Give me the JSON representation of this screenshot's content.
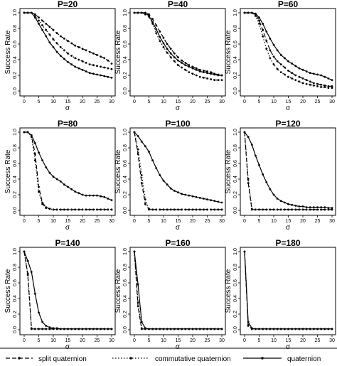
{
  "chart_data": {
    "type": "line",
    "panel_order": [
      "P=20",
      "P=40",
      "P=60",
      "P=80",
      "P=100",
      "P=120",
      "P=140",
      "P=160",
      "P=180"
    ],
    "xlabel": "σ",
    "ylabel": "Success Rate",
    "xlim": [
      0,
      30
    ],
    "ylim": [
      0,
      1
    ],
    "xticks": [
      "0",
      "5",
      "10",
      "15",
      "20",
      "25",
      "30"
    ],
    "yticks": [
      "0.0",
      "0.2",
      "0.4",
      "0.6",
      "0.8",
      "1.0"
    ],
    "grid": false,
    "legend_placement": "bottom",
    "x": [
      0,
      1.25,
      2.5,
      3.75,
      5,
      6.25,
      7.5,
      8.75,
      10,
      11.25,
      12.5,
      13.75,
      15,
      16.25,
      17.5,
      18.75,
      20,
      21.25,
      22.5,
      23.75,
      25,
      26.25,
      27.5,
      28.75,
      30
    ],
    "legend": [
      {
        "name": "split quaternion",
        "style": "dashed"
      },
      {
        "name": "commutative quaternion",
        "style": "dotted"
      },
      {
        "name": "quaternion",
        "style": "solid"
      }
    ],
    "panels": [
      {
        "title": "P=20",
        "series": [
          {
            "name": "split quaternion",
            "values": [
              1.0,
              1.0,
              1.0,
              0.98,
              0.94,
              0.9,
              0.86,
              0.82,
              0.78,
              0.74,
              0.7,
              0.67,
              0.64,
              0.61,
              0.58,
              0.56,
              0.54,
              0.52,
              0.5,
              0.48,
              0.46,
              0.44,
              0.42,
              0.39,
              0.35
            ]
          },
          {
            "name": "commutative quaternion",
            "values": [
              1.0,
              1.0,
              1.0,
              0.96,
              0.9,
              0.84,
              0.78,
              0.72,
              0.66,
              0.61,
              0.56,
              0.52,
              0.48,
              0.45,
              0.42,
              0.4,
              0.38,
              0.36,
              0.34,
              0.33,
              0.32,
              0.31,
              0.3,
              0.29,
              0.28
            ]
          },
          {
            "name": "quaternion",
            "values": [
              1.0,
              1.0,
              1.0,
              0.94,
              0.86,
              0.78,
              0.7,
              0.62,
              0.56,
              0.5,
              0.45,
              0.41,
              0.37,
              0.34,
              0.31,
              0.29,
              0.27,
              0.25,
              0.23,
              0.22,
              0.21,
              0.2,
              0.19,
              0.18,
              0.17
            ]
          }
        ]
      },
      {
        "title": "P=40",
        "series": [
          {
            "name": "split quaternion",
            "values": [
              1.0,
              1.0,
              1.0,
              1.0,
              0.98,
              0.92,
              0.84,
              0.76,
              0.68,
              0.6,
              0.54,
              0.48,
              0.43,
              0.39,
              0.36,
              0.33,
              0.31,
              0.29,
              0.27,
              0.26,
              0.25,
              0.24,
              0.22,
              0.21,
              0.2
            ]
          },
          {
            "name": "commutative quaternion",
            "values": [
              1.0,
              1.0,
              1.0,
              0.98,
              0.95,
              0.86,
              0.74,
              0.64,
              0.56,
              0.49,
              0.43,
              0.38,
              0.33,
              0.3,
              0.27,
              0.24,
              0.22,
              0.2,
              0.18,
              0.17,
              0.16,
              0.15,
              0.14,
              0.14,
              0.14
            ]
          },
          {
            "name": "quaternion",
            "values": [
              1.0,
              1.0,
              1.0,
              1.0,
              0.96,
              0.88,
              0.79,
              0.69,
              0.61,
              0.54,
              0.48,
              0.43,
              0.39,
              0.36,
              0.33,
              0.31,
              0.29,
              0.27,
              0.25,
              0.24,
              0.23,
              0.22,
              0.21,
              0.2,
              0.2
            ]
          }
        ]
      },
      {
        "title": "P=60",
        "series": [
          {
            "name": "split quaternion",
            "values": [
              1.0,
              1.0,
              1.0,
              0.98,
              0.9,
              0.78,
              0.64,
              0.52,
              0.44,
              0.38,
              0.34,
              0.3,
              0.26,
              0.23,
              0.2,
              0.18,
              0.16,
              0.14,
              0.12,
              0.1,
              0.09,
              0.08,
              0.07,
              0.06,
              0.06
            ]
          },
          {
            "name": "commutative quaternion",
            "values": [
              1.0,
              1.0,
              1.0,
              0.96,
              0.86,
              0.7,
              0.54,
              0.42,
              0.34,
              0.28,
              0.24,
              0.21,
              0.18,
              0.16,
              0.14,
              0.12,
              0.1,
              0.09,
              0.08,
              0.07,
              0.06,
              0.05,
              0.05,
              0.04,
              0.04
            ]
          },
          {
            "name": "quaternion",
            "values": [
              1.0,
              1.0,
              1.0,
              0.99,
              0.94,
              0.86,
              0.76,
              0.67,
              0.59,
              0.52,
              0.46,
              0.42,
              0.38,
              0.35,
              0.32,
              0.29,
              0.27,
              0.25,
              0.23,
              0.22,
              0.21,
              0.2,
              0.18,
              0.16,
              0.14
            ]
          }
        ]
      },
      {
        "title": "P=80",
        "series": [
          {
            "name": "split quaternion",
            "values": [
              1.0,
              1.0,
              0.96,
              0.72,
              0.3,
              0.1,
              0.04,
              0.02,
              0.01,
              0.01,
              0.01,
              0.01,
              0.01,
              0.01,
              0.01,
              0.01,
              0.01,
              0.01,
              0.01,
              0.01,
              0.01,
              0.01,
              0.01,
              0.01,
              0.01
            ]
          },
          {
            "name": "commutative quaternion",
            "values": [
              1.0,
              1.0,
              0.94,
              0.64,
              0.24,
              0.08,
              0.03,
              0.02,
              0.01,
              0.01,
              0.01,
              0.01,
              0.01,
              0.01,
              0.01,
              0.01,
              0.01,
              0.01,
              0.01,
              0.01,
              0.01,
              0.01,
              0.01,
              0.01,
              0.01
            ]
          },
          {
            "name": "quaternion",
            "values": [
              1.0,
              1.0,
              0.96,
              0.86,
              0.74,
              0.64,
              0.55,
              0.48,
              0.43,
              0.4,
              0.37,
              0.33,
              0.3,
              0.27,
              0.24,
              0.22,
              0.2,
              0.19,
              0.19,
              0.19,
              0.19,
              0.18,
              0.17,
              0.15,
              0.13
            ]
          }
        ]
      },
      {
        "title": "P=100",
        "series": [
          {
            "name": "split quaternion",
            "values": [
              1.0,
              0.72,
              0.35,
              0.08,
              0.01,
              0.01,
              0.01,
              0.01,
              0.01,
              0.01,
              0.01,
              0.01,
              0.01,
              0.01,
              0.01,
              0.01,
              0.01,
              0.01,
              0.01,
              0.01,
              0.01,
              0.01,
              0.01,
              0.01,
              0.01
            ]
          },
          {
            "name": "commutative quaternion",
            "values": [
              1.0,
              0.78,
              0.45,
              0.14,
              0.02,
              0.01,
              0.01,
              0.01,
              0.01,
              0.01,
              0.01,
              0.01,
              0.01,
              0.01,
              0.01,
              0.01,
              0.01,
              0.01,
              0.01,
              0.01,
              0.01,
              0.01,
              0.01,
              0.01,
              0.01
            ]
          },
          {
            "name": "quaternion",
            "values": [
              1.0,
              0.95,
              0.88,
              0.82,
              0.75,
              0.64,
              0.54,
              0.45,
              0.38,
              0.33,
              0.28,
              0.25,
              0.23,
              0.21,
              0.2,
              0.19,
              0.18,
              0.17,
              0.16,
              0.15,
              0.14,
              0.13,
              0.12,
              0.11,
              0.1
            ]
          }
        ]
      },
      {
        "title": "P=120",
        "series": [
          {
            "name": "split quaternion",
            "values": [
              1.0,
              0.35,
              0.01,
              0.01,
              0.01,
              0.01,
              0.01,
              0.01,
              0.01,
              0.01,
              0.01,
              0.01,
              0.01,
              0.01,
              0.01,
              0.01,
              0.01,
              0.01,
              0.01,
              0.01,
              0.01,
              0.01,
              0.01,
              0.01,
              0.01
            ]
          },
          {
            "name": "commutative quaternion",
            "values": [
              1.0,
              0.4,
              0.02,
              0.01,
              0.01,
              0.01,
              0.01,
              0.01,
              0.01,
              0.01,
              0.01,
              0.01,
              0.01,
              0.01,
              0.01,
              0.01,
              0.01,
              0.01,
              0.01,
              0.01,
              0.01,
              0.01,
              0.01,
              0.01,
              0.01
            ]
          },
          {
            "name": "quaternion",
            "values": [
              1.0,
              0.94,
              0.84,
              0.7,
              0.58,
              0.46,
              0.36,
              0.27,
              0.2,
              0.15,
              0.12,
              0.1,
              0.08,
              0.07,
              0.06,
              0.05,
              0.05,
              0.04,
              0.04,
              0.04,
              0.04,
              0.04,
              0.04,
              0.03,
              0.03
            ]
          }
        ]
      },
      {
        "title": "P=140",
        "series": [
          {
            "name": "split quaternion",
            "values": [
              1.0,
              0.7,
              0.01,
              0.01,
              0.01,
              0.01,
              0.01,
              0.01,
              0.01,
              0.01,
              0.01,
              0.01,
              0.01,
              0.01,
              0.01,
              0.01,
              0.01,
              0.01,
              0.01,
              0.01,
              0.01,
              0.01,
              0.01,
              0.01,
              0.01
            ]
          },
          {
            "name": "commutative quaternion",
            "values": [
              1.0,
              0.72,
              0.02,
              0.01,
              0.01,
              0.01,
              0.01,
              0.01,
              0.01,
              0.01,
              0.01,
              0.01,
              0.01,
              0.01,
              0.01,
              0.01,
              0.01,
              0.01,
              0.01,
              0.01,
              0.01,
              0.01,
              0.01,
              0.01,
              0.01
            ]
          },
          {
            "name": "quaternion",
            "values": [
              1.0,
              0.88,
              0.74,
              0.46,
              0.22,
              0.1,
              0.05,
              0.03,
              0.02,
              0.02,
              0.01,
              0.01,
              0.01,
              0.01,
              0.01,
              0.01,
              0.01,
              0.01,
              0.01,
              0.01,
              0.01,
              0.01,
              0.01,
              0.01,
              0.01
            ]
          }
        ]
      },
      {
        "title": "P=160",
        "series": [
          {
            "name": "split quaternion",
            "values": [
              1.0,
              0.3,
              0.01,
              0.01,
              0.01,
              0.01,
              0.01,
              0.01,
              0.01,
              0.01,
              0.01,
              0.01,
              0.01,
              0.01,
              0.01,
              0.01,
              0.01,
              0.01,
              0.01,
              0.01,
              0.01,
              0.01,
              0.01,
              0.01,
              0.01
            ]
          },
          {
            "name": "commutative quaternion",
            "values": [
              1.0,
              0.35,
              0.02,
              0.01,
              0.01,
              0.01,
              0.01,
              0.01,
              0.01,
              0.01,
              0.01,
              0.01,
              0.01,
              0.01,
              0.01,
              0.01,
              0.01,
              0.01,
              0.01,
              0.01,
              0.01,
              0.01,
              0.01,
              0.01,
              0.01
            ]
          },
          {
            "name": "quaternion",
            "values": [
              1.0,
              0.58,
              0.1,
              0.02,
              0.01,
              0.01,
              0.01,
              0.01,
              0.01,
              0.01,
              0.01,
              0.01,
              0.01,
              0.01,
              0.01,
              0.01,
              0.01,
              0.01,
              0.01,
              0.01,
              0.01,
              0.01,
              0.01,
              0.01,
              0.01
            ]
          }
        ]
      },
      {
        "title": "P=180",
        "series": [
          {
            "name": "split quaternion",
            "values": [
              1.0,
              0.05,
              0.01,
              0.01,
              0.01,
              0.01,
              0.01,
              0.01,
              0.01,
              0.01,
              0.01,
              0.01,
              0.01,
              0.01,
              0.01,
              0.01,
              0.01,
              0.01,
              0.01,
              0.01,
              0.01,
              0.01,
              0.01,
              0.01,
              0.01
            ]
          },
          {
            "name": "commutative quaternion",
            "values": [
              1.0,
              0.06,
              0.01,
              0.01,
              0.01,
              0.01,
              0.01,
              0.01,
              0.01,
              0.01,
              0.01,
              0.01,
              0.01,
              0.01,
              0.01,
              0.01,
              0.01,
              0.01,
              0.01,
              0.01,
              0.01,
              0.01,
              0.01,
              0.01,
              0.01
            ]
          },
          {
            "name": "quaternion",
            "values": [
              1.0,
              0.1,
              0.02,
              0.01,
              0.01,
              0.01,
              0.01,
              0.01,
              0.01,
              0.01,
              0.01,
              0.01,
              0.01,
              0.01,
              0.01,
              0.01,
              0.01,
              0.01,
              0.01,
              0.01,
              0.01,
              0.01,
              0.01,
              0.01,
              0.01
            ]
          }
        ]
      }
    ]
  }
}
